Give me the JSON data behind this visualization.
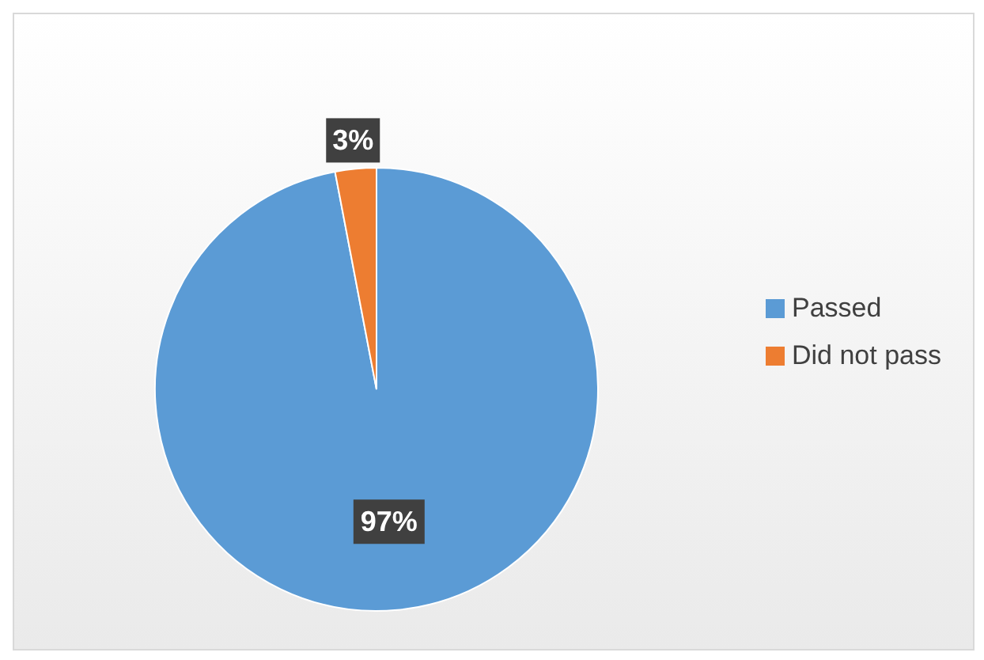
{
  "chart_data": {
    "type": "pie",
    "categories": [
      "Passed",
      "Did not pass"
    ],
    "values": [
      97,
      3
    ],
    "value_labels": [
      "97%",
      "3%"
    ],
    "colors": [
      "#5b9bd5",
      "#ed7d31"
    ],
    "legend": "right"
  }
}
